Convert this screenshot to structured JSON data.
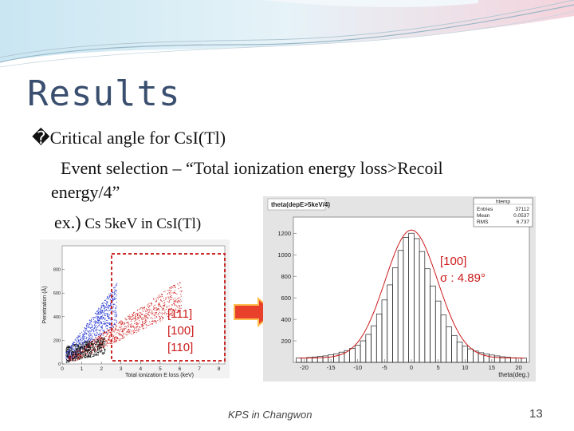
{
  "slide": {
    "title": "Results",
    "bullet_marker": "�",
    "bullet": "Critical angle for CsI(Tl)",
    "line2": "Event selection –  “Total ionization energy loss>Recoil",
    "line3": "energy/4”",
    "line4_prefix": "ex.)",
    "line4_small": " Cs 5keV in CsI(Tl)",
    "footer": "KPS in Changwon",
    "page_number": "13"
  },
  "annotations": {
    "left_labels": [
      "[111]",
      "[100]",
      "[110]"
    ],
    "right_label_1": "[100]",
    "right_label_2": "σ : 4.89°"
  },
  "colors": {
    "title": "#3a4f6f",
    "annotation": "#cc1a1a",
    "arrow": "#e8402a",
    "selection_box": "#cc2a2a"
  },
  "chart_data": [
    {
      "type": "scatter",
      "title": "",
      "xlabel": "Total ionization E loss (keV)",
      "ylabel": "Penetration (Å)",
      "x_ticks": [
        "0",
        "1",
        "2",
        "3",
        "4",
        "5",
        "6",
        "7",
        "8"
      ],
      "y_ticks": [
        "0",
        "200",
        "400",
        "600",
        "800"
      ],
      "xlim": [
        0,
        8.3
      ],
      "ylim": [
        0,
        1000
      ],
      "series": [
        {
          "color": "#2030d0"
        },
        {
          "color": "#cc1a1a"
        }
      ]
    },
    {
      "type": "bar",
      "title": "theta(depE>5keV/4)",
      "xlabel": "theta(deg.)",
      "stats": {
        "name": "htemp",
        "rows": [
          {
            "label": "Entries",
            "value": "37112"
          },
          {
            "label": "Mean",
            "value": "0.0537"
          },
          {
            "label": "RMS",
            "value": "6.737"
          }
        ]
      },
      "x_ticks": [
        "-20",
        "-15",
        "-10",
        "-5",
        "0",
        "5",
        "10",
        "15",
        "20"
      ],
      "y_ticks": [
        "200",
        "400",
        "600",
        "800",
        "1000",
        "1200"
      ],
      "xlim": [
        -22,
        22
      ],
      "ylim": [
        0,
        1350
      ],
      "centers": [
        -21,
        -20,
        -19,
        -18,
        -17,
        -16,
        -15,
        -14,
        -13,
        -12,
        -11,
        -10,
        -9,
        -8,
        -7,
        -6,
        -5,
        -4,
        -3,
        -2,
        -1,
        0,
        1,
        2,
        3,
        4,
        5,
        6,
        7,
        8,
        9,
        10,
        11,
        12,
        13,
        14,
        15,
        16,
        17,
        18,
        19,
        20,
        21
      ],
      "values": [
        40,
        42,
        45,
        50,
        55,
        60,
        70,
        80,
        95,
        110,
        130,
        160,
        200,
        260,
        340,
        450,
        580,
        720,
        880,
        1040,
        1160,
        1200,
        1150,
        1030,
        870,
        710,
        570,
        440,
        330,
        250,
        190,
        150,
        125,
        105,
        90,
        78,
        68,
        60,
        52,
        47,
        43,
        41,
        39
      ],
      "fit_color": "#cc1a1a"
    }
  ]
}
